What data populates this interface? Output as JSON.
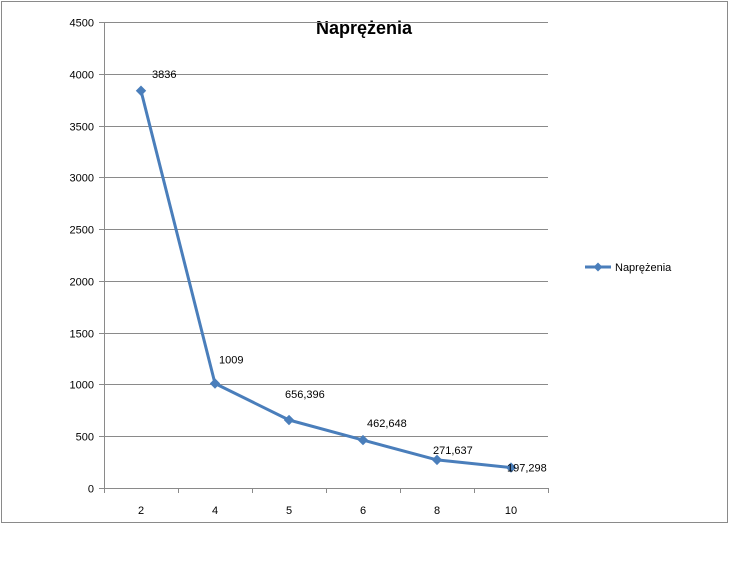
{
  "chart_data": {
    "type": "line",
    "title": "Naprężenia",
    "xlabel": "",
    "ylabel": "",
    "categories": [
      "2",
      "4",
      "5",
      "6",
      "8",
      "10"
    ],
    "series": [
      {
        "name": "Naprężenia",
        "values": [
          3836,
          1009,
          656.396,
          462.648,
          271.637,
          197.298
        ],
        "labels": [
          "3836",
          "1009",
          "656,396",
          "462,648",
          "271,637",
          "197,298"
        ],
        "color": "#4a7ebb",
        "marker": "diamond"
      }
    ],
    "ylim": [
      0,
      4500
    ],
    "yticks": [
      "0",
      "500",
      "1000",
      "1500",
      "2000",
      "2500",
      "3000",
      "3500",
      "4000",
      "4500"
    ],
    "grid": "horizontal",
    "legend_position": "right"
  }
}
